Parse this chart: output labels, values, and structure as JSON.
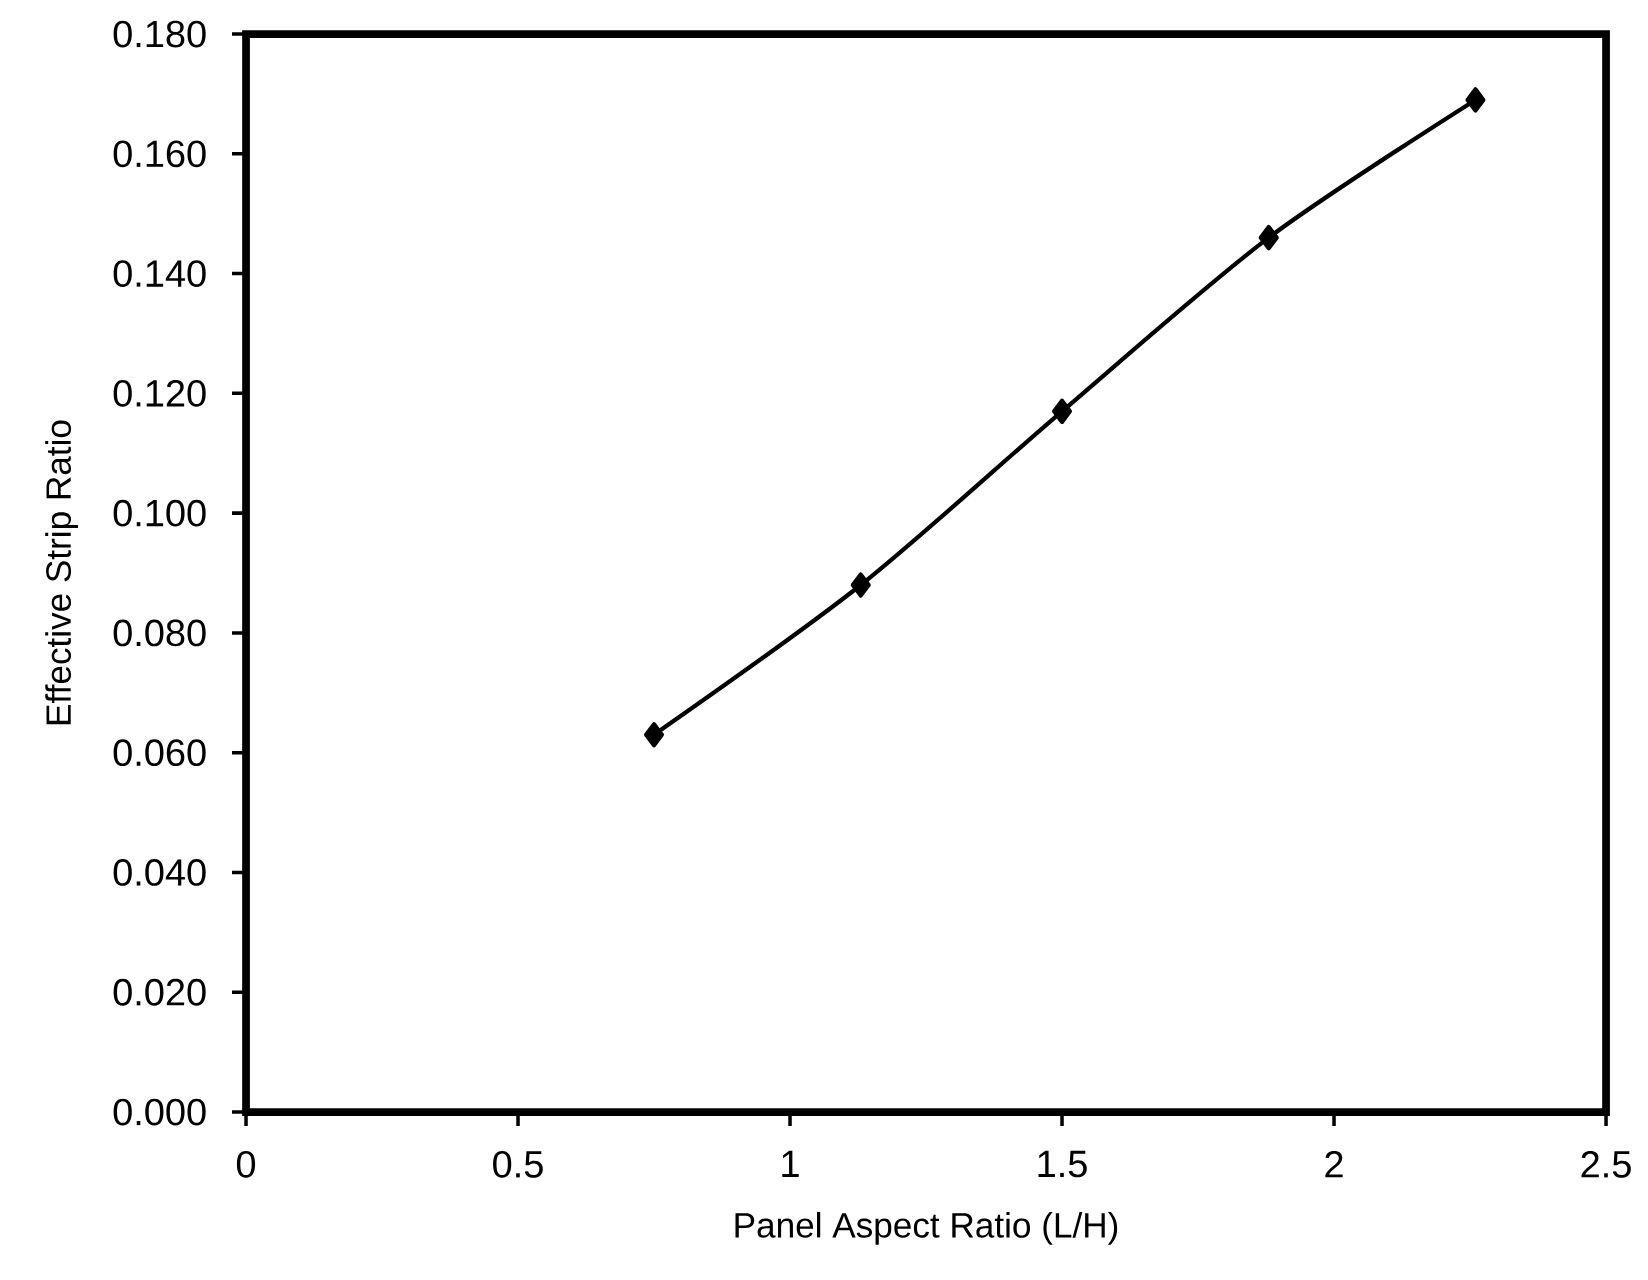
{
  "chart_data": {
    "type": "line",
    "xlabel": "Panel Aspect Ratio (L/H)",
    "ylabel": "Effective Strip Ratio",
    "x": [
      0.75,
      1.13,
      1.5,
      1.88,
      2.26
    ],
    "series": [
      {
        "color": "#000000",
        "values": [
          0.063,
          0.088,
          0.117,
          0.146,
          0.169
        ]
      }
    ],
    "xlim": [
      0,
      2.5
    ],
    "xticks": [
      0,
      0.5,
      1,
      1.5,
      2,
      2.5
    ],
    "ylim": [
      0,
      0.18
    ],
    "yticks": [
      {
        "value": 0,
        "label": "0.000"
      },
      {
        "value": 0.02,
        "label": "0.020"
      },
      {
        "value": 0.04,
        "label": "0.040"
      },
      {
        "value": 0.06,
        "label": "0.060"
      },
      {
        "value": 0.08,
        "label": "0.080"
      },
      {
        "value": 0.1,
        "label": "0.100"
      },
      {
        "value": 0.12,
        "label": "0.120"
      },
      {
        "value": 0.14,
        "label": "0.140"
      },
      {
        "value": 0.16,
        "label": "0.160"
      },
      {
        "value": 0.18,
        "label": "0.180"
      }
    ],
    "marker": "diamond",
    "line_style": "solid",
    "grid": false
  }
}
